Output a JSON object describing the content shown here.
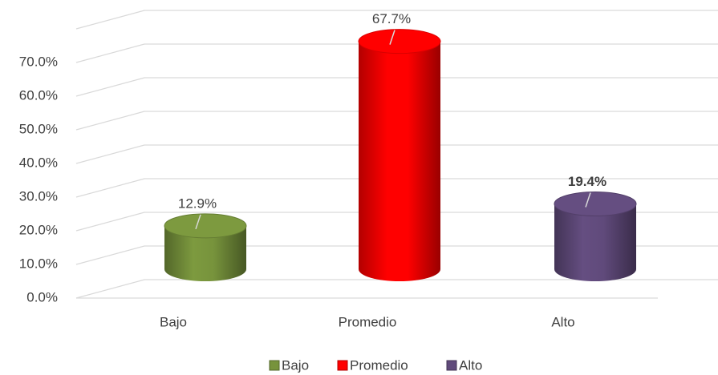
{
  "chart_data": {
    "type": "bar3d",
    "categories": [
      "Bajo",
      "Promedio",
      "Alto"
    ],
    "values": [
      12.9,
      67.7,
      19.4
    ],
    "value_labels": [
      "12.9%",
      "67.7%",
      "19.4%"
    ],
    "colors": [
      "#77933c",
      "#ff0000",
      "#604a7b"
    ],
    "ylim": [
      0,
      80
    ],
    "yticks": [
      {
        "value": 0,
        "label": "0.0%"
      },
      {
        "value": 10,
        "label": "10.0%"
      },
      {
        "value": 20,
        "label": "20.0%"
      },
      {
        "value": 30,
        "label": "30.0%"
      },
      {
        "value": 40,
        "label": "40.0%"
      },
      {
        "value": 50,
        "label": "50.0%"
      },
      {
        "value": 60,
        "label": "60.0%"
      },
      {
        "value": 70,
        "label": "70.0%"
      }
    ],
    "grid": true,
    "legend": "bottom",
    "series_legend": [
      "Bajo",
      "Promedio",
      "Alto"
    ]
  }
}
